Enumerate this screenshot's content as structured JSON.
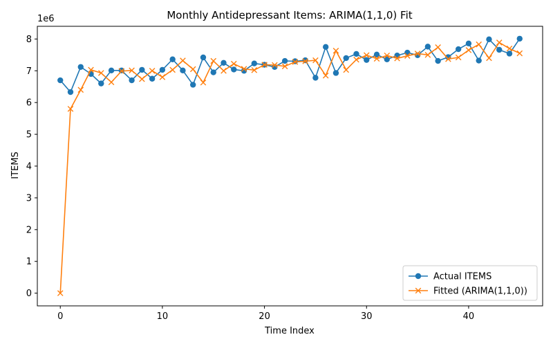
{
  "chart_data": {
    "type": "line",
    "title": "Monthly Antidepressant Items: ARIMA(1,1,0) Fit",
    "xlabel": "Time Index",
    "ylabel": "ITEMS",
    "y_multiplier_label": "1e6",
    "xlim": [
      -2.25,
      47.25
    ],
    "ylim": [
      -0.4,
      8.4
    ],
    "x_ticks": [
      0,
      10,
      20,
      30,
      40
    ],
    "y_ticks": [
      0,
      1,
      2,
      3,
      4,
      5,
      6,
      7,
      8
    ],
    "legend_position": "lower-right",
    "grid": false,
    "x": [
      0,
      1,
      2,
      3,
      4,
      5,
      6,
      7,
      8,
      9,
      10,
      11,
      12,
      13,
      14,
      15,
      16,
      17,
      18,
      19,
      20,
      21,
      22,
      23,
      24,
      25,
      26,
      27,
      28,
      29,
      30,
      31,
      32,
      33,
      34,
      35,
      36,
      37,
      38,
      39,
      40,
      41,
      42,
      43,
      44,
      45
    ],
    "series": [
      {
        "name": "Actual ITEMS",
        "color": "#1f77b4",
        "marker": "circle",
        "values": [
          6.7,
          6.33,
          7.12,
          6.9,
          6.6,
          7.01,
          7.01,
          6.7,
          7.03,
          6.75,
          7.03,
          7.36,
          7.01,
          6.56,
          7.42,
          6.95,
          7.25,
          7.04,
          7.0,
          7.23,
          7.19,
          7.12,
          7.31,
          7.3,
          7.33,
          6.78,
          7.75,
          6.93,
          7.4,
          7.53,
          7.34,
          7.51,
          7.36,
          7.48,
          7.57,
          7.49,
          7.76,
          7.31,
          7.43,
          7.68,
          7.86,
          7.32,
          7.99,
          7.66,
          7.54,
          8.01
        ]
      },
      {
        "name": "Fitted (ARIMA(1,1,0))",
        "color": "#ff7f0e",
        "marker": "x",
        "values": [
          0.0,
          5.8,
          6.4,
          7.03,
          6.93,
          6.64,
          6.99,
          7.01,
          6.74,
          7.0,
          6.8,
          7.03,
          7.32,
          7.05,
          6.63,
          7.31,
          7.0,
          7.22,
          7.06,
          7.02,
          7.19,
          7.18,
          7.14,
          7.28,
          7.3,
          7.33,
          6.85,
          7.63,
          7.03,
          7.35,
          7.49,
          7.38,
          7.48,
          7.39,
          7.47,
          7.54,
          7.5,
          7.74,
          7.37,
          7.42,
          7.65,
          7.83,
          7.4,
          7.89,
          7.7,
          7.55
        ]
      }
    ]
  }
}
